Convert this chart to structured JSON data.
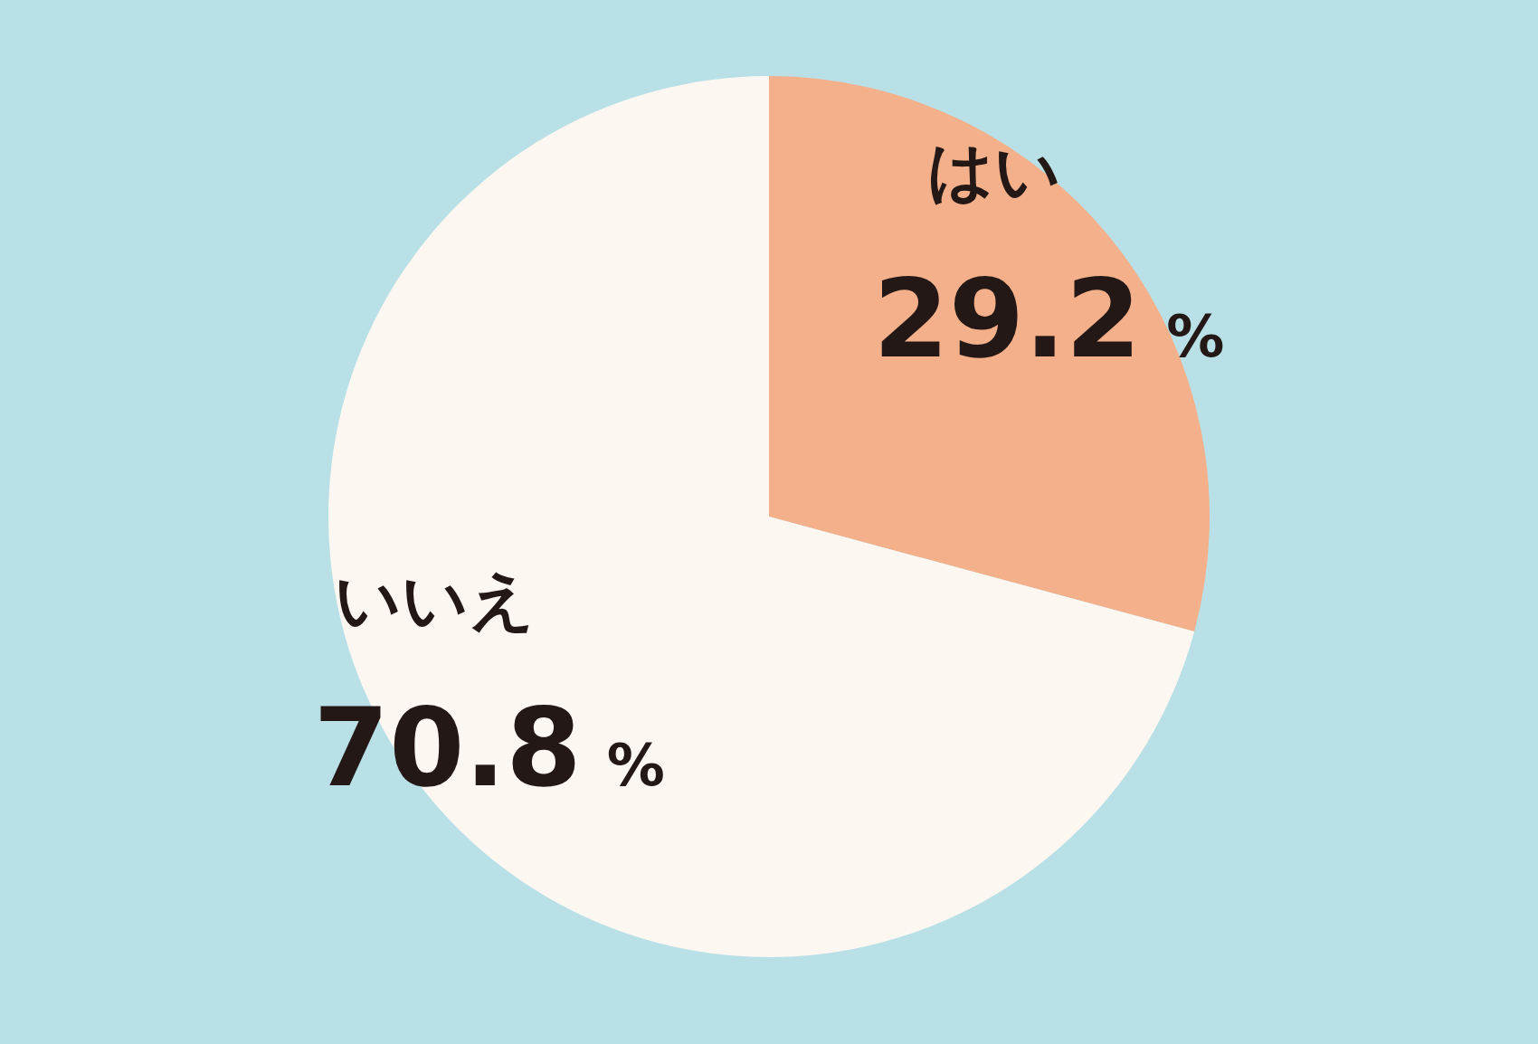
{
  "chart_data": {
    "type": "pie",
    "categories": [
      "はい",
      "いいえ"
    ],
    "values": [
      29.2,
      70.8
    ],
    "colors": [
      "#f3b08a",
      "#fdf7f2"
    ],
    "value_labels": [
      "29.2 %",
      "70.8 %"
    ]
  }
}
